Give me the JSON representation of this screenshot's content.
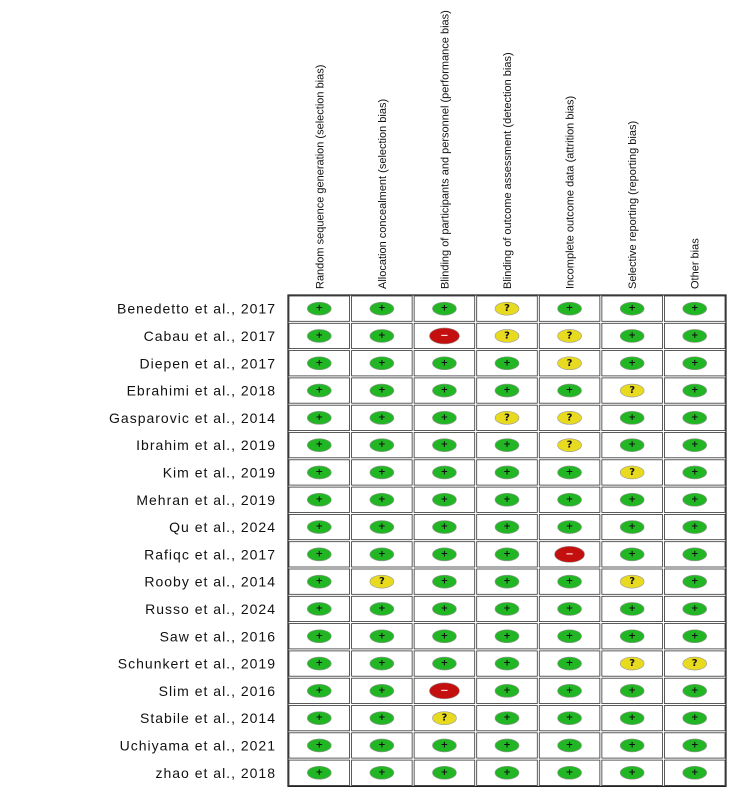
{
  "chart_data": {
    "type": "table",
    "columns": [
      "Random sequence generation (selection bias)",
      "Allocation concealment (selection bias)",
      "Blinding of participants and personnel (performance bias)",
      "Blinding of outcome assessment (detection bias)",
      "Incomplete outcome data (attrition bias)",
      "Selective reporting (reporting bias)",
      "Other bias"
    ],
    "rows": [
      {
        "study": "Benedetto et al., 2017",
        "judgements": [
          "low",
          "low",
          "low",
          "unclear",
          "low",
          "low",
          "low"
        ]
      },
      {
        "study": "Cabau et al., 2017",
        "judgements": [
          "low",
          "low",
          "high",
          "unclear",
          "unclear",
          "low",
          "low"
        ]
      },
      {
        "study": "Diepen et al., 2017",
        "judgements": [
          "low",
          "low",
          "low",
          "low",
          "unclear",
          "low",
          "low"
        ]
      },
      {
        "study": "Ebrahimi et al., 2018",
        "judgements": [
          "low",
          "low",
          "low",
          "low",
          "low",
          "unclear",
          "low"
        ]
      },
      {
        "study": "Gasparovic et al., 2014",
        "judgements": [
          "low",
          "low",
          "low",
          "unclear",
          "unclear",
          "low",
          "low"
        ]
      },
      {
        "study": "Ibrahim et al., 2019",
        "judgements": [
          "low",
          "low",
          "low",
          "low",
          "unclear",
          "low",
          "low"
        ]
      },
      {
        "study": "Kim et al., 2019",
        "judgements": [
          "low",
          "low",
          "low",
          "low",
          "low",
          "unclear",
          "low"
        ]
      },
      {
        "study": "Mehran et al., 2019",
        "judgements": [
          "low",
          "low",
          "low",
          "low",
          "low",
          "low",
          "low"
        ]
      },
      {
        "study": "Qu et al., 2024",
        "judgements": [
          "low",
          "low",
          "low",
          "low",
          "low",
          "low",
          "low"
        ]
      },
      {
        "study": "Rafiqc et al., 2017",
        "judgements": [
          "low",
          "low",
          "low",
          "low",
          "high",
          "low",
          "low"
        ]
      },
      {
        "study": "Rooby et al., 2014",
        "judgements": [
          "low",
          "unclear",
          "low",
          "low",
          "low",
          "unclear",
          "low"
        ]
      },
      {
        "study": "Russo et al., 2024",
        "judgements": [
          "low",
          "low",
          "low",
          "low",
          "low",
          "low",
          "low"
        ]
      },
      {
        "study": "Saw et al., 2016",
        "judgements": [
          "low",
          "low",
          "low",
          "low",
          "low",
          "low",
          "low"
        ]
      },
      {
        "study": "Schunkert et al., 2019",
        "judgements": [
          "low",
          "low",
          "low",
          "low",
          "low",
          "unclear",
          "unclear"
        ]
      },
      {
        "study": "Slim et al., 2016",
        "judgements": [
          "low",
          "low",
          "high",
          "low",
          "low",
          "low",
          "low"
        ]
      },
      {
        "study": "Stabile et al., 2014",
        "judgements": [
          "low",
          "low",
          "unclear",
          "low",
          "low",
          "low",
          "low"
        ]
      },
      {
        "study": "Uchiyama et al., 2021",
        "judgements": [
          "low",
          "low",
          "low",
          "low",
          "low",
          "low",
          "low"
        ]
      },
      {
        "study": "zhao et al., 2018",
        "judgements": [
          "low",
          "low",
          "low",
          "low",
          "low",
          "low",
          "low"
        ]
      }
    ],
    "legend": {
      "low": {
        "symbol": "+",
        "color": "#22b524"
      },
      "unclear": {
        "symbol": "?",
        "color": "#e8da1e"
      },
      "high": {
        "symbol": "−",
        "color": "#c40f0f"
      }
    }
  }
}
